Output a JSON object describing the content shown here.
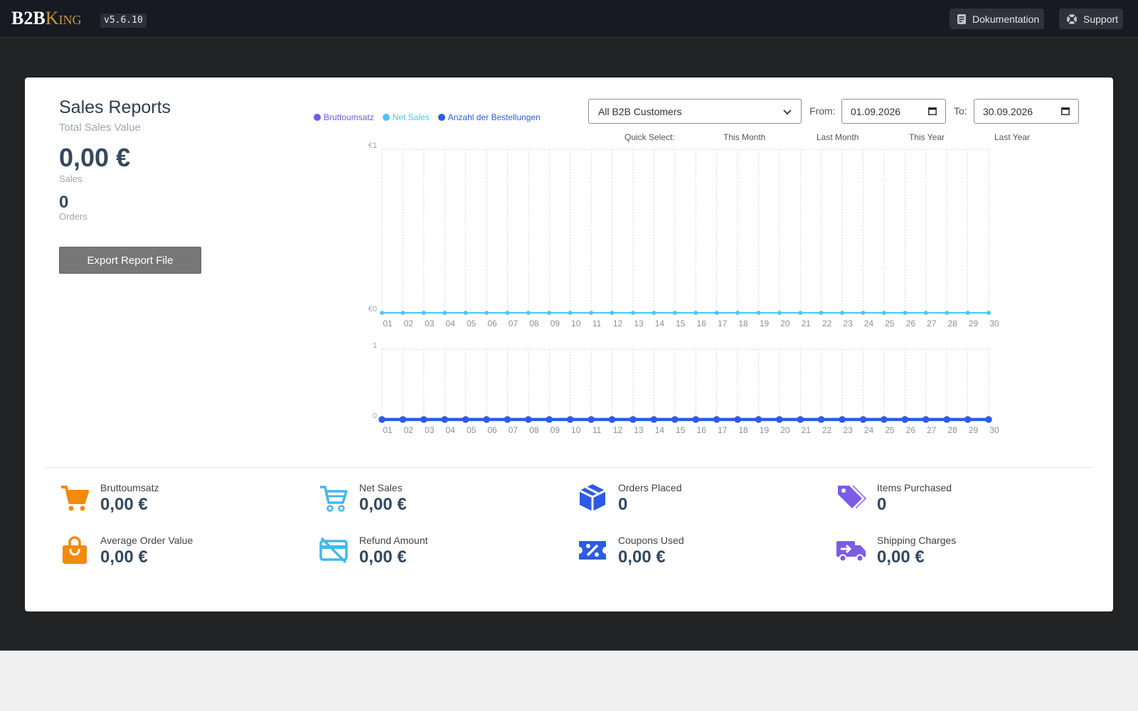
{
  "header": {
    "logo_b2b": "B2B",
    "logo_king": "King",
    "version": "v5.6.10",
    "docs_label": "Dokumentation",
    "support_label": "Support"
  },
  "report": {
    "title": "Sales Reports",
    "subtitle": "Total Sales Value",
    "total_value": "0,00 €",
    "sales_label": "Sales",
    "orders_value": "0",
    "orders_label": "Orders",
    "export_label": "Export Report File"
  },
  "filters": {
    "customer_select": "All B2B Customers",
    "from_label": "From:",
    "from_value": "01.09.2026",
    "to_label": "To:",
    "to_value": "30.09.2026",
    "quick_select_label": "Quick Select:",
    "quick_options": [
      "This Month",
      "Last Month",
      "This Year",
      "Last Year"
    ]
  },
  "legend": [
    {
      "name": "Bruttoumsatz",
      "color": "#6c5ce7"
    },
    {
      "name": "Net Sales",
      "color": "#4fc3f7"
    },
    {
      "name": "Anzahl der Bestellungen",
      "color": "#2d5be3"
    }
  ],
  "chart_data": [
    {
      "type": "line",
      "x": [
        "01",
        "02",
        "03",
        "04",
        "05",
        "06",
        "07",
        "08",
        "09",
        "10",
        "11",
        "12",
        "13",
        "14",
        "15",
        "16",
        "17",
        "18",
        "19",
        "20",
        "21",
        "22",
        "23",
        "24",
        "25",
        "26",
        "27",
        "28",
        "29",
        "30"
      ],
      "ylim": [
        0,
        1
      ],
      "ytick_labels": [
        "€0",
        "€1"
      ],
      "series": [
        {
          "name": "Bruttoumsatz",
          "values": [
            0,
            0,
            0,
            0,
            0,
            0,
            0,
            0,
            0,
            0,
            0,
            0,
            0,
            0,
            0,
            0,
            0,
            0,
            0,
            0,
            0,
            0,
            0,
            0,
            0,
            0,
            0,
            0,
            0,
            0
          ]
        },
        {
          "name": "Net Sales",
          "values": [
            0,
            0,
            0,
            0,
            0,
            0,
            0,
            0,
            0,
            0,
            0,
            0,
            0,
            0,
            0,
            0,
            0,
            0,
            0,
            0,
            0,
            0,
            0,
            0,
            0,
            0,
            0,
            0,
            0,
            0
          ]
        }
      ]
    },
    {
      "type": "line",
      "x": [
        "01",
        "02",
        "03",
        "04",
        "05",
        "06",
        "07",
        "08",
        "09",
        "10",
        "11",
        "12",
        "13",
        "14",
        "15",
        "16",
        "17",
        "18",
        "19",
        "20",
        "21",
        "22",
        "23",
        "24",
        "25",
        "26",
        "27",
        "28",
        "29",
        "30"
      ],
      "ylim": [
        0,
        1
      ],
      "ytick_labels": [
        "0",
        "1"
      ],
      "series": [
        {
          "name": "Anzahl der Bestellungen",
          "values": [
            0,
            0,
            0,
            0,
            0,
            0,
            0,
            0,
            0,
            0,
            0,
            0,
            0,
            0,
            0,
            0,
            0,
            0,
            0,
            0,
            0,
            0,
            0,
            0,
            0,
            0,
            0,
            0,
            0,
            0
          ]
        }
      ]
    }
  ],
  "stats": [
    {
      "label": "Bruttoumsatz",
      "value": "0,00 €",
      "icon": "cart-icon",
      "color": "#f28a0c"
    },
    {
      "label": "Net Sales",
      "value": "0,00 €",
      "icon": "cart-outline-icon",
      "color": "#45b8e8"
    },
    {
      "label": "Orders Placed",
      "value": "0",
      "icon": "box-icon",
      "color": "#2d5be3"
    },
    {
      "label": "Items Purchased",
      "value": "0",
      "icon": "tags-icon",
      "color": "#7c5ce6"
    },
    {
      "label": "Average Order Value",
      "value": "0,00 €",
      "icon": "shopping-bag-icon",
      "color": "#f28a0c"
    },
    {
      "label": "Refund Amount",
      "value": "0,00 €",
      "icon": "card-off-icon",
      "color": "#45b8e8"
    },
    {
      "label": "Coupons Used",
      "value": "0,00 €",
      "icon": "coupon-icon",
      "color": "#2d5be3"
    },
    {
      "label": "Shipping Charges",
      "value": "0,00 €",
      "icon": "truck-icon",
      "color": "#7c5ce6"
    }
  ]
}
